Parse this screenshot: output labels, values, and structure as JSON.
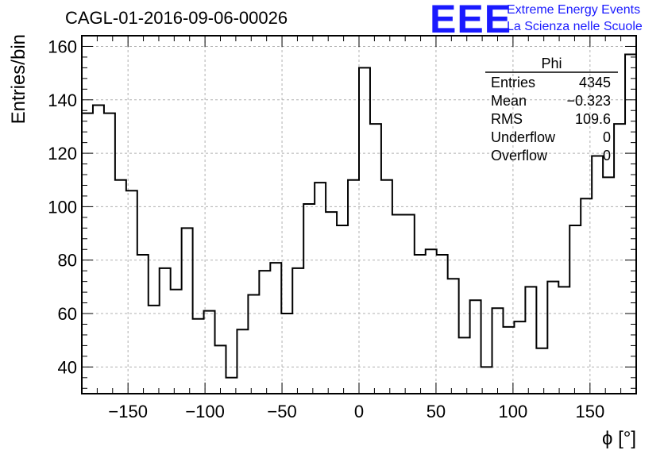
{
  "header": {
    "run_title": "CAGL-01-2016-09-06-00026",
    "logo_text": "EEE",
    "logo_line1": "Extreme Energy Events",
    "logo_line2": "La Scienza nelle Scuole"
  },
  "colors": {
    "logo": "#1a1aff",
    "line": "#000000",
    "grid": "#b0b0b0"
  },
  "stats_box": {
    "name": "Phi",
    "rows": [
      {
        "label": "Entries",
        "value": "4345"
      },
      {
        "label": "Mean",
        "value": "−0.323"
      },
      {
        "label": "RMS",
        "value": "109.6"
      },
      {
        "label": "Underflow",
        "value": "0"
      },
      {
        "label": "Overflow",
        "value": "0"
      }
    ]
  },
  "chart_data": {
    "type": "histogram",
    "title": "CAGL-01-2016-09-06-00026",
    "xlabel": "ϕ [°]",
    "ylabel": "Entries/bin",
    "xlim": [
      -180,
      180
    ],
    "ylim": [
      30,
      164
    ],
    "grid": true,
    "x_ticks": [
      -150,
      -100,
      -50,
      0,
      50,
      100,
      150
    ],
    "x_tick_labels": [
      "−150",
      "−100",
      "−50",
      "0",
      "50",
      "100",
      "150"
    ],
    "y_ticks": [
      40,
      60,
      80,
      100,
      120,
      140,
      160
    ],
    "y_tick_labels": [
      "40",
      "60",
      "80",
      "100",
      "120",
      "140",
      "160"
    ],
    "bin_edges_start": -180,
    "bin_width": 7.2,
    "values": [
      135,
      138,
      135,
      110,
      106,
      82,
      63,
      77,
      69,
      92,
      58,
      61,
      48,
      36,
      54,
      67,
      76,
      79,
      60,
      77,
      101,
      109,
      98,
      93,
      110,
      152,
      131,
      110,
      97,
      97,
      82,
      84,
      82,
      73,
      51,
      65,
      40,
      62,
      55,
      57,
      70,
      47,
      72,
      70,
      93,
      103,
      119,
      111,
      131,
      157
    ]
  }
}
